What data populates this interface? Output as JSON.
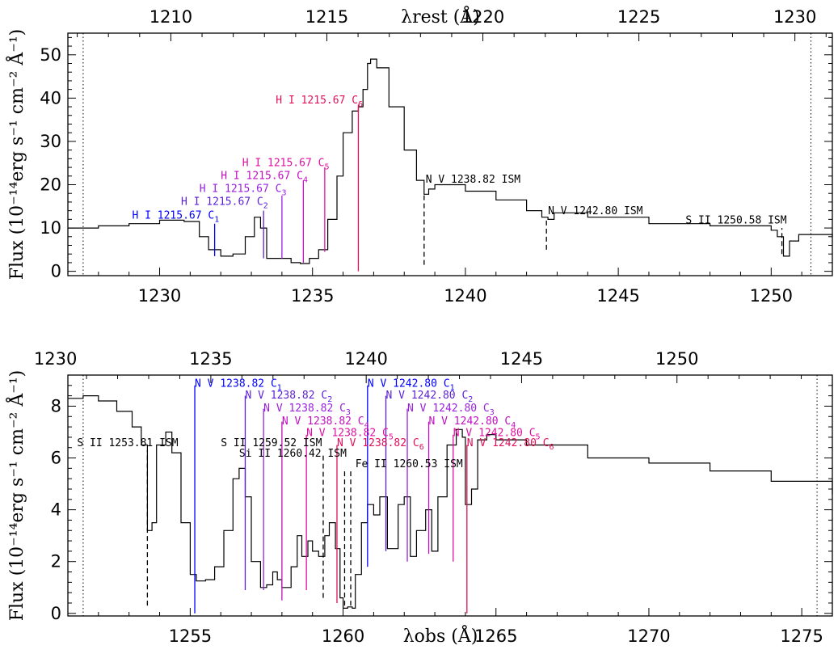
{
  "chart_data": [
    {
      "type": "line",
      "panel": "top",
      "xlabel": "",
      "top_axis_label": "λrest (Å)",
      "ylabel": "Flux (10⁻¹⁴erg s⁻¹ cm⁻² Å⁻¹)",
      "xlim": [
        1227,
        1252
      ],
      "ylim": [
        -1,
        55
      ],
      "top_xlim": [
        1206.7,
        1231.2
      ],
      "x_ticks": [
        1230,
        1235,
        1240,
        1245,
        1250
      ],
      "top_ticks": [
        1210,
        1215,
        1220,
        1225,
        1230
      ],
      "y_ticks": [
        0,
        10,
        20,
        30,
        40,
        50
      ],
      "dotted_lines_x": [
        1227.5,
        1251.3
      ],
      "series": [
        {
          "color": "#000000",
          "points": [
            [
              1227,
              10
            ],
            [
              1228,
              10.5
            ],
            [
              1229,
              11
            ],
            [
              1230,
              11.8
            ],
            [
              1230.8,
              11.5
            ],
            [
              1231.3,
              8
            ],
            [
              1231.6,
              5
            ],
            [
              1232,
              3.5
            ],
            [
              1232.4,
              4
            ],
            [
              1232.8,
              8
            ],
            [
              1233.1,
              12.5
            ],
            [
              1233.3,
              10
            ],
            [
              1233.5,
              3
            ],
            [
              1233.9,
              3
            ],
            [
              1234.3,
              2
            ],
            [
              1234.6,
              1.8
            ],
            [
              1234.9,
              3
            ],
            [
              1235.2,
              5
            ],
            [
              1235.5,
              12
            ],
            [
              1235.8,
              22
            ],
            [
              1236.0,
              32
            ],
            [
              1236.3,
              37
            ],
            [
              1236.5,
              38
            ],
            [
              1236.65,
              42
            ],
            [
              1236.8,
              48
            ],
            [
              1236.9,
              49
            ],
            [
              1237.1,
              47
            ],
            [
              1237.5,
              38
            ],
            [
              1238,
              28
            ],
            [
              1238.4,
              21
            ],
            [
              1238.65,
              17.8
            ],
            [
              1238.8,
              19
            ],
            [
              1239,
              20
            ],
            [
              1240,
              18.5
            ],
            [
              1241,
              16.5
            ],
            [
              1242,
              14
            ],
            [
              1242.5,
              12.5
            ],
            [
              1242.7,
              12
            ],
            [
              1242.9,
              13.5
            ],
            [
              1244,
              12.5
            ],
            [
              1246,
              11
            ],
            [
              1248,
              10.5
            ],
            [
              1250,
              9.5
            ],
            [
              1250.2,
              8
            ],
            [
              1250.4,
              3.5
            ],
            [
              1250.6,
              7
            ],
            [
              1250.9,
              8.5
            ],
            [
              1252,
              8
            ]
          ]
        }
      ],
      "vertical_markers": [
        {
          "x": 1231.8,
          "y0": 3.5,
          "y1": 11,
          "style": "solid",
          "color": "#0000ff"
        },
        {
          "x": 1233.4,
          "y0": 3,
          "y1": 14,
          "style": "solid",
          "color": "#5a1fd6"
        },
        {
          "x": 1234.0,
          "y0": 3,
          "y1": 17.5,
          "style": "solid",
          "color": "#9a20e0"
        },
        {
          "x": 1234.7,
          "y0": 2,
          "y1": 21,
          "style": "solid",
          "color": "#c010c0"
        },
        {
          "x": 1235.4,
          "y0": 4.5,
          "y1": 24,
          "style": "solid",
          "color": "#e010a0"
        },
        {
          "x": 1236.5,
          "y0": 0,
          "y1": 38.5,
          "style": "solid",
          "color": "#e0105a"
        },
        {
          "x": 1238.65,
          "y0": 1.5,
          "y1": 17.8,
          "style": "dashed",
          "color": "#000000"
        },
        {
          "x": 1242.65,
          "y0": 5,
          "y1": 12,
          "style": "dashed",
          "color": "#000000"
        },
        {
          "x": 1250.35,
          "y0": 4,
          "y1": 10,
          "style": "dashed",
          "color": "#000000"
        }
      ],
      "annotations": [
        {
          "base": "H I 1215.67 C",
          "sub": "1",
          "x": 1229.1,
          "y": 12.2,
          "color": "#0000ff"
        },
        {
          "base": "H I 1215.67 C",
          "sub": "2",
          "x": 1230.7,
          "y": 15.3,
          "color": "#5a1fd6"
        },
        {
          "base": "H I 1215.67 C",
          "sub": "3",
          "x": 1231.3,
          "y": 18.3,
          "color": "#9a20e0"
        },
        {
          "base": "H I 1215.67 C",
          "sub": "4",
          "x": 1232.0,
          "y": 21.3,
          "color": "#c010c0"
        },
        {
          "base": "H I 1215.67 C",
          "sub": "5",
          "x": 1232.7,
          "y": 24.3,
          "color": "#e010a0"
        },
        {
          "base": "H I 1215.67 C",
          "sub": "6",
          "x": 1233.8,
          "y": 38.8,
          "color": "#e0105a"
        },
        {
          "base": "N V 1238.82 ISM",
          "sub": "",
          "x": 1238.7,
          "y": 20.5,
          "color": "#000000"
        },
        {
          "base": "N V 1242.80 ISM",
          "sub": "",
          "x": 1242.7,
          "y": 13.2,
          "color": "#000000"
        },
        {
          "base": "S II 1250.58 ISM",
          "sub": "",
          "x": 1247.2,
          "y": 11,
          "color": "#000000"
        }
      ]
    },
    {
      "type": "line",
      "panel": "bottom",
      "xlabel": "λobs (Å)",
      "ylabel": "Flux (10⁻¹⁴erg s⁻¹ cm⁻² Å⁻¹)",
      "xlim": [
        1251,
        1276
      ],
      "ylim": [
        -0.1,
        9.2
      ],
      "top_xlim": [
        1230.4,
        1255.0
      ],
      "x_ticks": [
        1255,
        1260,
        1265,
        1270,
        1275
      ],
      "top_ticks": [
        1230,
        1235,
        1240,
        1245,
        1250
      ],
      "y_ticks": [
        0,
        2,
        4,
        6,
        8
      ],
      "dotted_lines_x": [
        1251.5,
        1275.5
      ],
      "series": [
        {
          "color": "#000000",
          "points": [
            [
              1251,
              8.3
            ],
            [
              1251.5,
              8.4
            ],
            [
              1252,
              8.2
            ],
            [
              1252.6,
              7.8
            ],
            [
              1253.1,
              7.2
            ],
            [
              1253.4,
              6.5
            ],
            [
              1253.6,
              3.2
            ],
            [
              1253.75,
              3.5
            ],
            [
              1253.9,
              6.5
            ],
            [
              1254.2,
              7
            ],
            [
              1254.4,
              6.2
            ],
            [
              1254.7,
              3.5
            ],
            [
              1255.0,
              1.5
            ],
            [
              1255.2,
              1.25
            ],
            [
              1255.5,
              1.3
            ],
            [
              1255.8,
              1.8
            ],
            [
              1256.1,
              3.2
            ],
            [
              1256.4,
              5.2
            ],
            [
              1256.6,
              5.6
            ],
            [
              1256.8,
              4.5
            ],
            [
              1257.0,
              2.0
            ],
            [
              1257.3,
              1.0
            ],
            [
              1257.5,
              1.1
            ],
            [
              1257.7,
              1.6
            ],
            [
              1257.85,
              1.3
            ],
            [
              1258.0,
              1.0
            ],
            [
              1258.3,
              1.8
            ],
            [
              1258.5,
              3.0
            ],
            [
              1258.65,
              2.2
            ],
            [
              1258.85,
              2.8
            ],
            [
              1259.0,
              2.4
            ],
            [
              1259.2,
              2.2
            ],
            [
              1259.4,
              3.0
            ],
            [
              1259.55,
              3.5
            ],
            [
              1259.75,
              2.5
            ],
            [
              1259.9,
              0.6
            ],
            [
              1260.0,
              0.2
            ],
            [
              1260.15,
              0.25
            ],
            [
              1260.3,
              0.2
            ],
            [
              1260.4,
              1.5
            ],
            [
              1260.6,
              3.5
            ],
            [
              1260.8,
              4.2
            ],
            [
              1261.0,
              3.8
            ],
            [
              1261.2,
              4.5
            ],
            [
              1261.45,
              2.5
            ],
            [
              1261.6,
              2.5
            ],
            [
              1261.8,
              4.2
            ],
            [
              1262.0,
              4.5
            ],
            [
              1262.2,
              2.2
            ],
            [
              1262.4,
              3.2
            ],
            [
              1262.7,
              4.0
            ],
            [
              1262.9,
              2.4
            ],
            [
              1263.1,
              4.5
            ],
            [
              1263.4,
              6.5
            ],
            [
              1263.7,
              7.1
            ],
            [
              1263.9,
              6.8
            ],
            [
              1264.0,
              4.2
            ],
            [
              1264.2,
              4.8
            ],
            [
              1264.4,
              6.7
            ],
            [
              1264.7,
              6.9
            ],
            [
              1265,
              6.7
            ],
            [
              1266,
              6.5
            ],
            [
              1268,
              6.0
            ],
            [
              1270,
              5.8
            ],
            [
              1272,
              5.5
            ],
            [
              1274,
              5.1
            ],
            [
              1276,
              4.6
            ]
          ]
        }
      ],
      "vertical_markers": [
        {
          "x": 1255.15,
          "y0": 0,
          "y1": 8.8,
          "style": "solid",
          "color": "#0000ff"
        },
        {
          "x": 1256.8,
          "y0": 0.9,
          "y1": 8.4,
          "style": "solid",
          "color": "#5a1fd6"
        },
        {
          "x": 1257.4,
          "y0": 0.9,
          "y1": 7.9,
          "style": "solid",
          "color": "#9a20e0"
        },
        {
          "x": 1258.0,
          "y0": 0.5,
          "y1": 7.4,
          "style": "solid",
          "color": "#c010c0"
        },
        {
          "x": 1258.8,
          "y0": 0.9,
          "y1": 6.9,
          "style": "solid",
          "color": "#e010a0"
        },
        {
          "x": 1259.8,
          "y0": 0.4,
          "y1": 6.5,
          "style": "solid",
          "color": "#e0105a"
        },
        {
          "x": 1260.8,
          "y0": 1.8,
          "y1": 8.8,
          "style": "solid",
          "color": "#0000ff"
        },
        {
          "x": 1261.4,
          "y0": 2.4,
          "y1": 8.4,
          "style": "solid",
          "color": "#5a1fd6"
        },
        {
          "x": 1262.1,
          "y0": 2.0,
          "y1": 7.9,
          "style": "solid",
          "color": "#9a20e0"
        },
        {
          "x": 1262.8,
          "y0": 2.3,
          "y1": 7.4,
          "style": "solid",
          "color": "#c010c0"
        },
        {
          "x": 1263.6,
          "y0": 2.0,
          "y1": 6.9,
          "style": "solid",
          "color": "#e010a0"
        },
        {
          "x": 1264.05,
          "y0": 0,
          "y1": 6.5,
          "style": "solid",
          "color": "#e0105a"
        },
        {
          "x": 1253.6,
          "y0": 0.3,
          "y1": 6.3,
          "style": "dashed",
          "color": "#000000"
        },
        {
          "x": 1259.35,
          "y0": 0.6,
          "y1": 6.2,
          "style": "dashed",
          "color": "#000000"
        },
        {
          "x": 1260.05,
          "y0": 0.3,
          "y1": 5.5,
          "style": "dashed",
          "color": "#000000"
        },
        {
          "x": 1260.25,
          "y0": 0.3,
          "y1": 5.5,
          "style": "dashed",
          "color": "#000000"
        }
      ],
      "annotations": [
        {
          "base": "N V 1238.82 C",
          "sub": "1",
          "x": 1255.15,
          "y": 8.75,
          "color": "#0000ff"
        },
        {
          "base": "N V 1238.82 C",
          "sub": "2",
          "x": 1256.8,
          "y": 8.3,
          "color": "#5a1fd6"
        },
        {
          "base": "N V 1238.82 C",
          "sub": "3",
          "x": 1257.4,
          "y": 7.8,
          "color": "#9a20e0"
        },
        {
          "base": "N V 1238.82 C",
          "sub": "4",
          "x": 1258.0,
          "y": 7.3,
          "color": "#c010c0"
        },
        {
          "base": "N V 1238.82 C",
          "sub": "5",
          "x": 1258.8,
          "y": 6.85,
          "color": "#e010a0"
        },
        {
          "base": "N V 1238.82 C",
          "sub": "6",
          "x": 1259.8,
          "y": 6.45,
          "color": "#e0105a"
        },
        {
          "base": "N V 1242.80 C",
          "sub": "1",
          "x": 1260.8,
          "y": 8.75,
          "color": "#0000ff"
        },
        {
          "base": "N V 1242.80 C",
          "sub": "2",
          "x": 1261.4,
          "y": 8.3,
          "color": "#5a1fd6"
        },
        {
          "base": "N V 1242.80 C",
          "sub": "3",
          "x": 1262.1,
          "y": 7.8,
          "color": "#9a20e0"
        },
        {
          "base": "N V 1242.80 C",
          "sub": "4",
          "x": 1262.8,
          "y": 7.3,
          "color": "#c010c0"
        },
        {
          "base": "N V 1242.80 C",
          "sub": "5",
          "x": 1263.6,
          "y": 6.85,
          "color": "#e010a0"
        },
        {
          "base": "N V 1242.80 C",
          "sub": "6",
          "x": 1264.05,
          "y": 6.45,
          "color": "#e0105a"
        },
        {
          "base": "S II 1253.81 ISM",
          "sub": "",
          "x": 1251.3,
          "y": 6.45,
          "color": "#000000"
        },
        {
          "base": "S II 1259.52 ISM",
          "sub": "",
          "x": 1256.0,
          "y": 6.45,
          "color": "#000000"
        },
        {
          "base": "Si II 1260.42 ISM",
          "sub": "",
          "x": 1256.6,
          "y": 6.05,
          "color": "#000000"
        },
        {
          "base": "Fe II 1260.53 ISM",
          "sub": "",
          "x": 1260.4,
          "y": 5.65,
          "color": "#000000"
        }
      ]
    }
  ]
}
